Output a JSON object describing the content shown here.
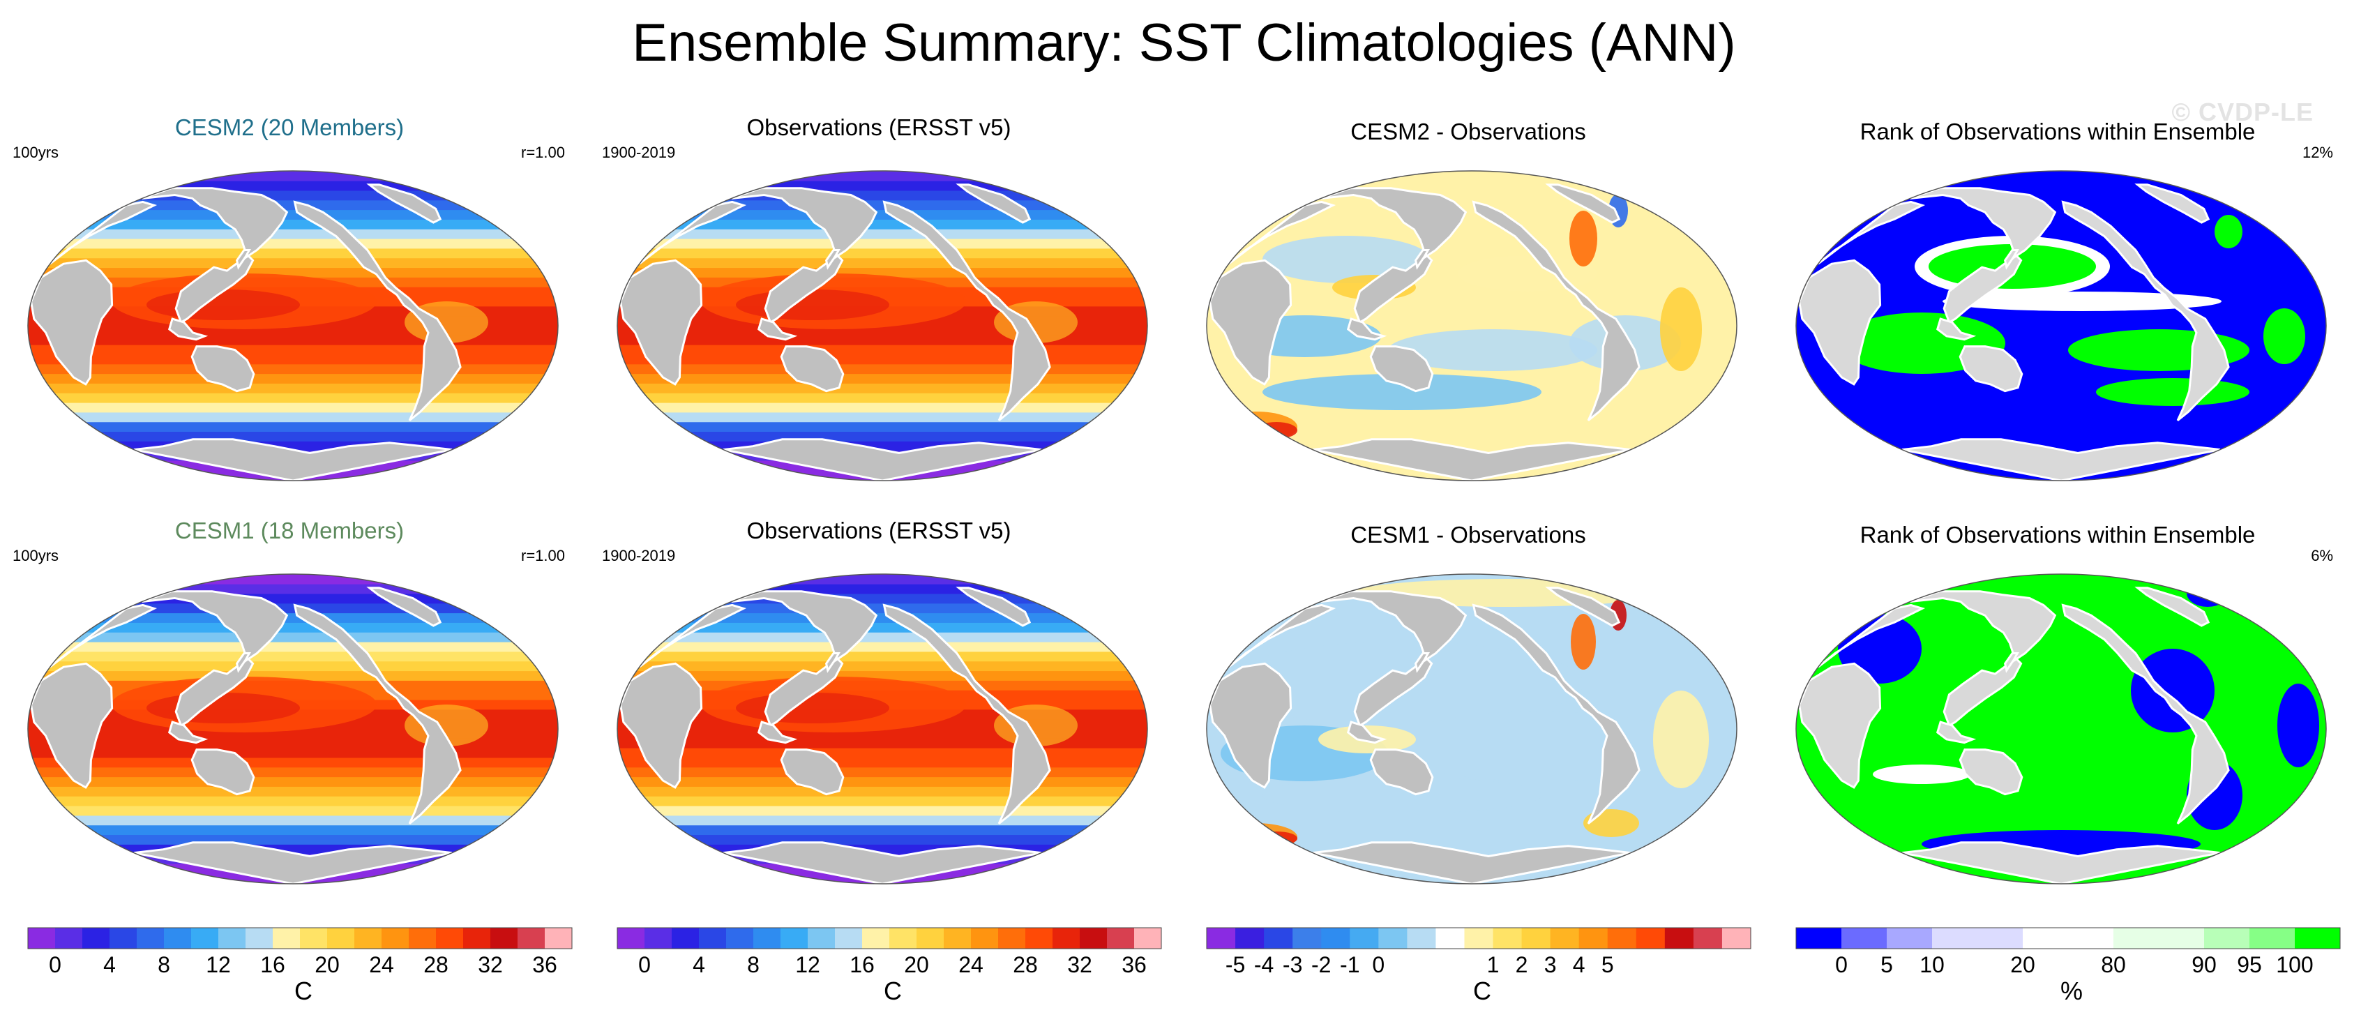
{
  "title": "Ensemble Summary: SST Climatologies (ANN)",
  "watermark": "© CVDP-LE",
  "colors": {
    "land": "#c0c0c0",
    "ocean_border": "#ffffff",
    "cesm2_title": "#1f6f8b",
    "cesm1_title": "#5d8a5d",
    "rank_low": "#0000ff",
    "rank_high": "#00ff00"
  },
  "panels": [
    {
      "id": "r1c1",
      "title": "CESM2 (20 Members)",
      "left_label": "100yrs",
      "right_label": "r=1.00",
      "kind": "sst",
      "variant": 0
    },
    {
      "id": "r1c2",
      "title": "Observations (ERSST v5)",
      "left_label": "1900-2019",
      "right_label": "",
      "kind": "sst",
      "variant": 1
    },
    {
      "id": "r1c3",
      "title": "CESM2 - Observations",
      "left_label": "",
      "right_label": "",
      "kind": "diff",
      "variant": 0
    },
    {
      "id": "r1c4",
      "title": "Rank of Observations within Ensemble",
      "left_label": "",
      "right_label": "12%",
      "kind": "rank",
      "variant": 0
    },
    {
      "id": "r2c1",
      "title": "CESM1 (18 Members)",
      "left_label": "100yrs",
      "right_label": "r=1.00",
      "kind": "sst",
      "variant": 2
    },
    {
      "id": "r2c2",
      "title": "Observations (ERSST v5)",
      "left_label": "1900-2019",
      "right_label": "",
      "kind": "sst",
      "variant": 1
    },
    {
      "id": "r2c3",
      "title": "CESM1 - Observations",
      "left_label": "",
      "right_label": "",
      "kind": "diff",
      "variant": 1
    },
    {
      "id": "r2c4",
      "title": "Rank of Observations within Ensemble",
      "left_label": "",
      "right_label": "6%",
      "kind": "rank",
      "variant": 1
    }
  ],
  "colorbars": [
    {
      "id": "sst1",
      "unit": "C",
      "colors": [
        "#8a2be2",
        "#5a2ee6",
        "#2b22e4",
        "#2a47e6",
        "#2f6bec",
        "#2f8cf0",
        "#38abf5",
        "#7cc6f2",
        "#b7dcf3",
        "#fff2a8",
        "#ffe366",
        "#ffd23e",
        "#ffb422",
        "#ff9410",
        "#ff6e0a",
        "#ff4a06",
        "#e8240a",
        "#c80e10",
        "#d84050",
        "#ffb3b8"
      ],
      "labels": [
        "0",
        "4",
        "8",
        "12",
        "16",
        "20",
        "24",
        "28",
        "32",
        "36"
      ],
      "label_at": [
        1,
        3,
        5,
        7,
        9,
        11,
        13,
        15,
        17,
        19
      ]
    },
    {
      "id": "sst2",
      "unit": "C",
      "colors": [
        "#8a2be2",
        "#5a2ee6",
        "#2b22e4",
        "#2a47e6",
        "#2f6bec",
        "#2f8cf0",
        "#38abf5",
        "#7cc6f2",
        "#b7dcf3",
        "#fff2a8",
        "#ffe366",
        "#ffd23e",
        "#ffb422",
        "#ff9410",
        "#ff6e0a",
        "#ff4a06",
        "#e8240a",
        "#c80e10",
        "#d84050",
        "#ffb3b8"
      ],
      "labels": [
        "0",
        "4",
        "8",
        "12",
        "16",
        "20",
        "24",
        "28",
        "32",
        "36"
      ],
      "label_at": [
        1,
        3,
        5,
        7,
        9,
        11,
        13,
        15,
        17,
        19
      ]
    },
    {
      "id": "diff",
      "unit": "C",
      "colors": [
        "#8a2be2",
        "#3a1fe0",
        "#2a47e6",
        "#3c7fea",
        "#2f8cf0",
        "#45aaf2",
        "#7cc6f2",
        "#b7dcf3",
        "#ffffff",
        "#fff2a8",
        "#ffe366",
        "#ffd23e",
        "#ffb422",
        "#ff9410",
        "#ff6e0a",
        "#ff4a06",
        "#c80e10",
        "#d84050",
        "#ffb3b8"
      ],
      "labels": [
        "-5",
        "-4",
        "-3",
        "-2",
        "-1",
        "0",
        "1",
        "2",
        "3",
        "4",
        "5"
      ],
      "label_at": [
        1,
        2,
        3,
        4,
        5,
        6,
        10,
        11,
        12,
        13,
        14
      ]
    },
    {
      "id": "rank",
      "unit": "%",
      "colors": [
        "#0000ff",
        "#6b6bff",
        "#a8a8ff",
        "#dcdcff",
        "#dcdcff",
        "#ffffff",
        "#ffffff",
        "#e6ffe6",
        "#e6ffe6",
        "#b8ffb8",
        "#86ff86",
        "#00ff00"
      ],
      "labels": [
        "0",
        "5",
        "10",
        "20",
        "80",
        "90",
        "95",
        "100"
      ],
      "label_at": [
        1,
        2,
        3,
        5,
        7,
        9,
        10,
        11
      ]
    }
  ]
}
